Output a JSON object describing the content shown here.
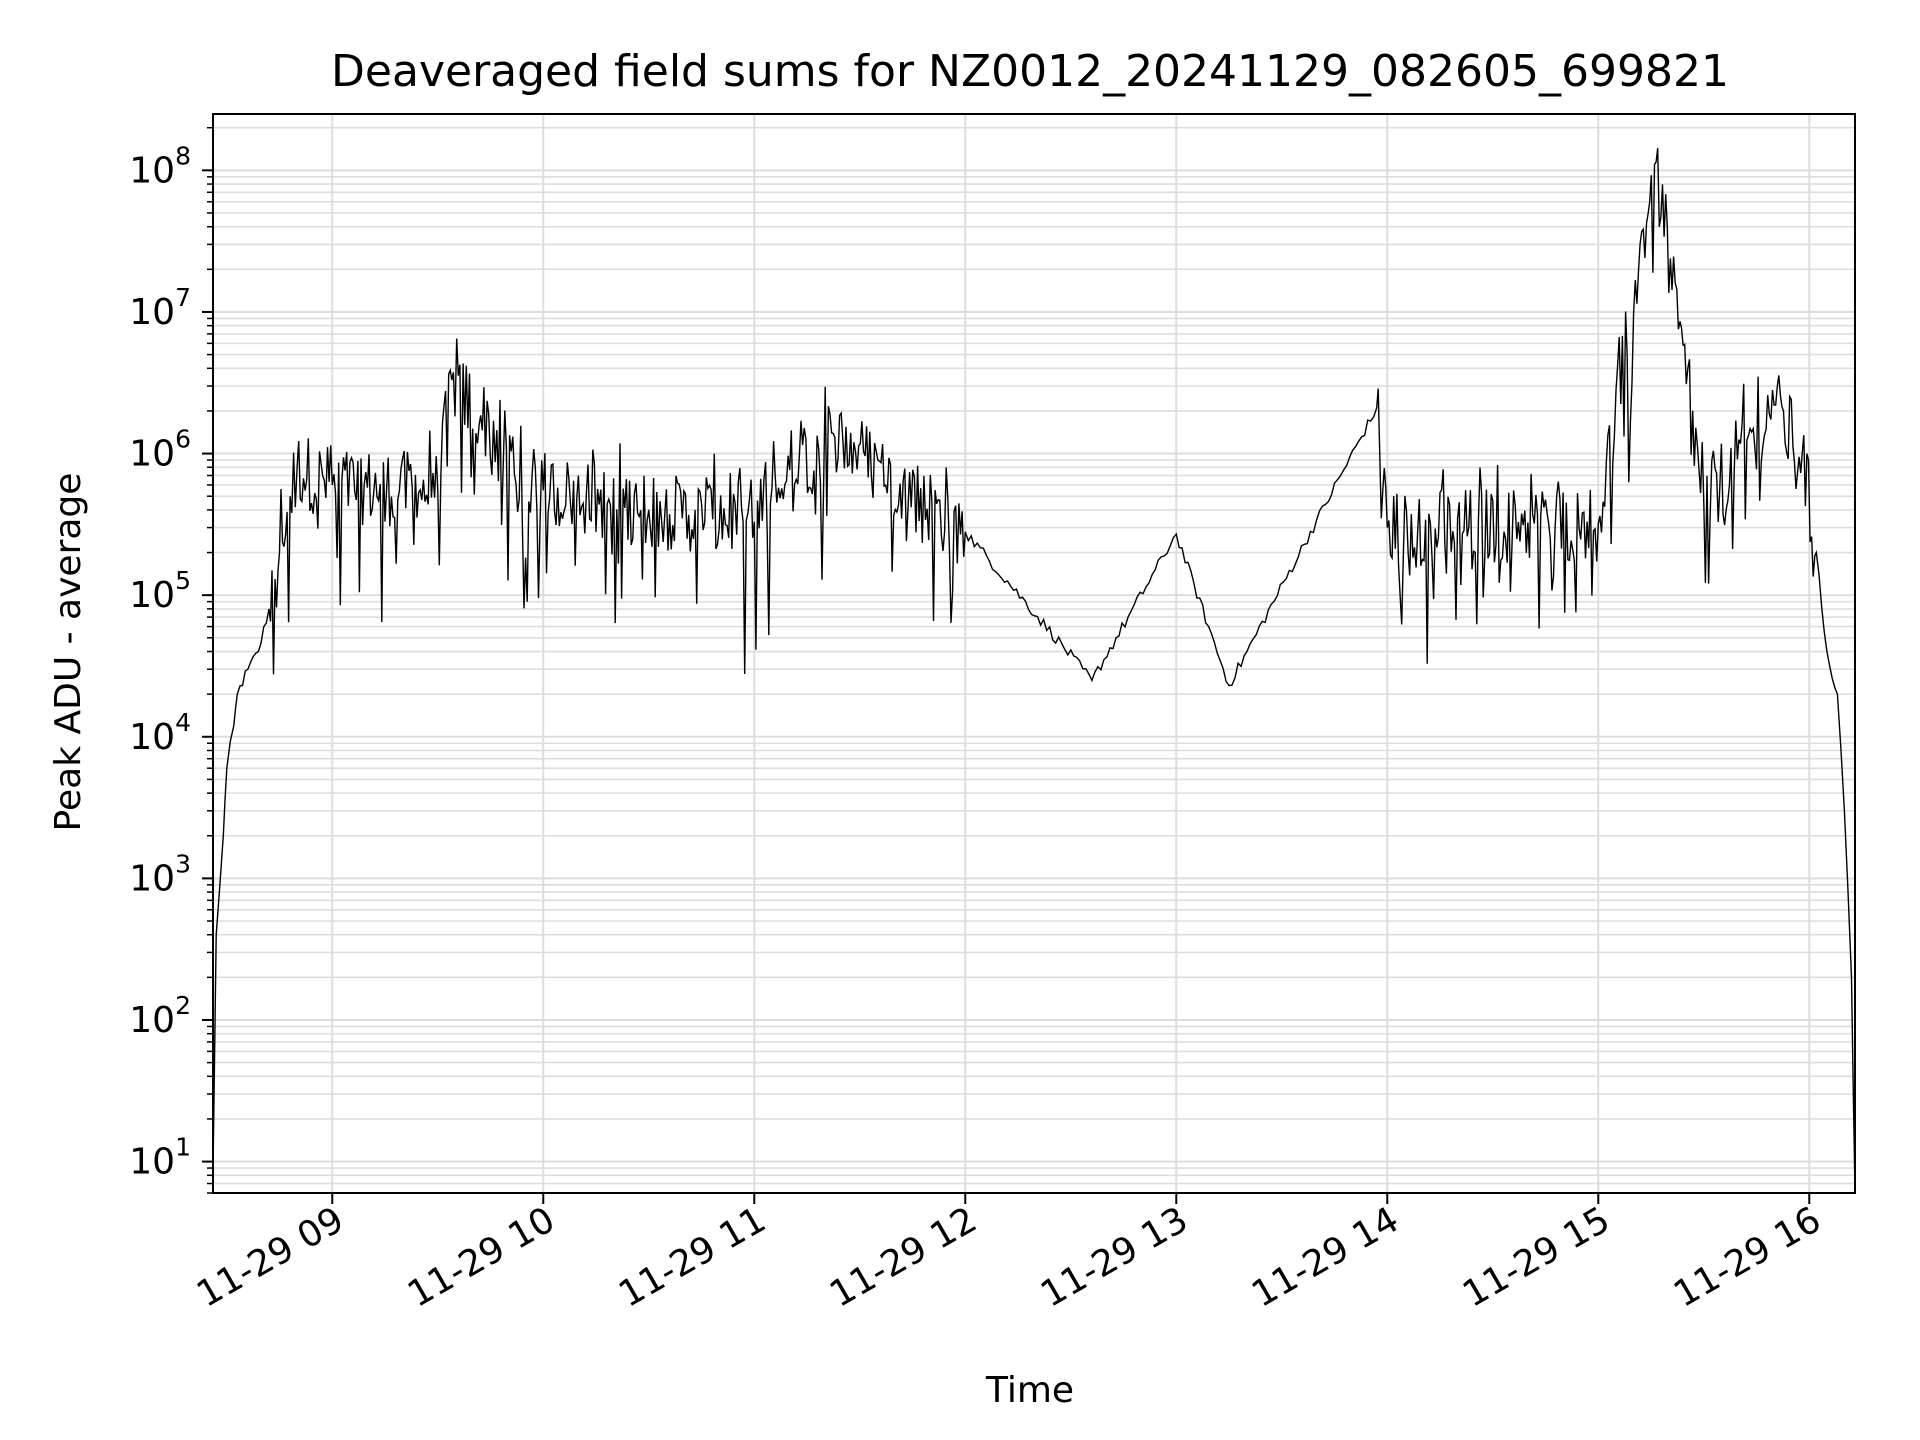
{
  "chart_data": {
    "type": "line",
    "title": "Deaveraged field sums for NZ0012_20241129_082605_699821",
    "xlabel": "Time",
    "ylabel": "Peak ADU - average",
    "y_scale": "log",
    "xlim": [
      "2024-11-29T08:26:05",
      "2024-11-29T16:13:00"
    ],
    "ylim": [
      6,
      250000000
    ],
    "x_ticks": [
      {
        "at": "2024-11-29T09:00",
        "label": "11-29 09"
      },
      {
        "at": "2024-11-29T10:00",
        "label": "11-29 10"
      },
      {
        "at": "2024-11-29T11:00",
        "label": "11-29 11"
      },
      {
        "at": "2024-11-29T12:00",
        "label": "11-29 12"
      },
      {
        "at": "2024-11-29T13:00",
        "label": "11-29 13"
      },
      {
        "at": "2024-11-29T14:00",
        "label": "11-29 14"
      },
      {
        "at": "2024-11-29T15:00",
        "label": "11-29 15"
      },
      {
        "at": "2024-11-29T16:00",
        "label": "11-29 16"
      }
    ],
    "y_ticks": [
      {
        "value": 10,
        "base": "10",
        "exp": "1"
      },
      {
        "value": 100,
        "base": "10",
        "exp": "2"
      },
      {
        "value": 1000,
        "base": "10",
        "exp": "3"
      },
      {
        "value": 10000,
        "base": "10",
        "exp": "4"
      },
      {
        "value": 100000,
        "base": "10",
        "exp": "5"
      },
      {
        "value": 1000000,
        "base": "10",
        "exp": "6"
      },
      {
        "value": 10000000,
        "base": "10",
        "exp": "7"
      },
      {
        "value": 100000000,
        "base": "10",
        "exp": "8"
      }
    ],
    "grid": true,
    "line_color": "#000000",
    "series": [
      {
        "points": [
          {
            "x": "2024-11-29T08:26",
            "y": 6
          },
          {
            "x": "2024-11-29T08:27",
            "y": 400
          },
          {
            "x": "2024-11-29T08:29",
            "y": 2000
          },
          {
            "x": "2024-11-29T08:30",
            "y": 6000
          },
          {
            "x": "2024-11-29T08:32",
            "y": 12000
          },
          {
            "x": "2024-11-29T08:33",
            "y": 20000
          },
          {
            "x": "2024-11-29T08:36",
            "y": 30000
          },
          {
            "x": "2024-11-29T08:39",
            "y": 40000
          },
          {
            "x": "2024-11-29T08:42",
            "y": 80000
          },
          {
            "x": "2024-11-29T08:45",
            "y": 200000
          },
          {
            "x": "2024-11-29T08:48",
            "y": 500000
          },
          {
            "x": "2024-11-29T08:50",
            "y": 800000
          },
          {
            "x": "2024-11-29T09:00",
            "y": 600000
          },
          {
            "x": "2024-11-29T09:30",
            "y": 550000
          },
          {
            "x": "2024-11-29T09:34",
            "y": 3300000
          },
          {
            "x": "2024-11-29T10:00",
            "y": 550000
          },
          {
            "x": "2024-11-29T10:30",
            "y": 400000
          },
          {
            "x": "2024-11-29T11:00",
            "y": 330000
          },
          {
            "x": "2024-11-29T11:22",
            "y": 1400000
          },
          {
            "x": "2024-11-29T12:00",
            "y": 280000
          },
          {
            "x": "2024-11-29T12:36",
            "y": 25000
          },
          {
            "x": "2024-11-29T13:00",
            "y": 270000
          },
          {
            "x": "2024-11-29T13:15",
            "y": 23000
          },
          {
            "x": "2024-11-29T13:57",
            "y": 2100000
          },
          {
            "x": "2024-11-29T14:00",
            "y": 300000
          },
          {
            "x": "2024-11-29T15:00",
            "y": 320000
          },
          {
            "x": "2024-11-29T15:16",
            "y": 110000000
          },
          {
            "x": "2024-11-29T15:30",
            "y": 450000
          },
          {
            "x": "2024-11-29T15:50",
            "y": 2200000
          },
          {
            "x": "2024-11-29T15:58",
            "y": 1000000
          },
          {
            "x": "2024-11-29T16:02",
            "y": 200000
          },
          {
            "x": "2024-11-29T16:05",
            "y": 40000
          },
          {
            "x": "2024-11-29T16:08",
            "y": 20000
          },
          {
            "x": "2024-11-29T16:10",
            "y": 3000
          },
          {
            "x": "2024-11-29T16:12",
            "y": 200
          },
          {
            "x": "2024-11-29T16:13",
            "y": 6
          }
        ]
      }
    ]
  }
}
